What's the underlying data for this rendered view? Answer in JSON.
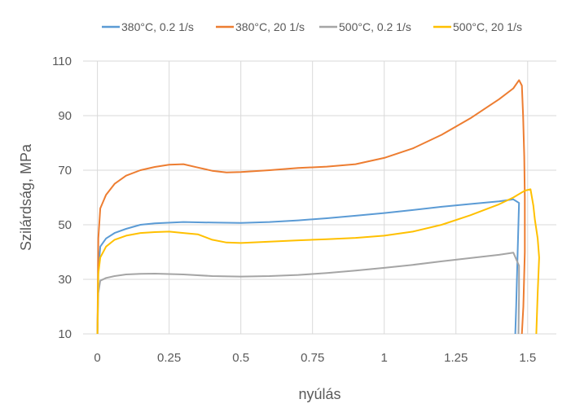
{
  "chart_data": {
    "type": "line",
    "title": "",
    "xlabel": "nyúlás",
    "ylabel": "Szilárdság, MPa",
    "xlim": [
      -0.05,
      1.6
    ],
    "ylim": [
      10,
      110
    ],
    "x_ticks": [
      0,
      0.25,
      0.5,
      0.75,
      1,
      1.25,
      1.5
    ],
    "x_tick_labels": [
      "0",
      "0.25",
      "0.5",
      "0.75",
      "1",
      "1.25",
      "1.5"
    ],
    "y_ticks": [
      10,
      30,
      50,
      70,
      90,
      110
    ],
    "y_tick_labels": [
      "10",
      "30",
      "50",
      "70",
      "90",
      "110"
    ],
    "grid": true,
    "legend_position": "top",
    "series": [
      {
        "name": "380°C, 0.2 1/s",
        "color": "#5B9BD5",
        "points": [
          [
            0,
            10
          ],
          [
            0.003,
            33
          ],
          [
            0.01,
            42
          ],
          [
            0.03,
            45
          ],
          [
            0.06,
            47
          ],
          [
            0.1,
            48.5
          ],
          [
            0.15,
            50
          ],
          [
            0.2,
            50.5
          ],
          [
            0.3,
            51
          ],
          [
            0.4,
            50.8
          ],
          [
            0.5,
            50.7
          ],
          [
            0.6,
            51
          ],
          [
            0.7,
            51.6
          ],
          [
            0.8,
            52.4
          ],
          [
            0.9,
            53.3
          ],
          [
            1.0,
            54.3
          ],
          [
            1.1,
            55.4
          ],
          [
            1.2,
            56.6
          ],
          [
            1.3,
            57.6
          ],
          [
            1.4,
            58.6
          ],
          [
            1.45,
            59.3
          ],
          [
            1.47,
            58
          ],
          [
            1.465,
            40
          ],
          [
            1.46,
            20
          ],
          [
            1.457,
            10
          ]
        ]
      },
      {
        "name": "380°C, 20 1/s",
        "color": "#ED7D31",
        "points": [
          [
            0,
            10
          ],
          [
            0.003,
            45
          ],
          [
            0.01,
            56
          ],
          [
            0.03,
            61
          ],
          [
            0.06,
            65
          ],
          [
            0.1,
            68
          ],
          [
            0.15,
            70
          ],
          [
            0.2,
            71.2
          ],
          [
            0.25,
            72
          ],
          [
            0.3,
            72.2
          ],
          [
            0.35,
            71
          ],
          [
            0.4,
            69.8
          ],
          [
            0.45,
            69.2
          ],
          [
            0.5,
            69.3
          ],
          [
            0.6,
            70
          ],
          [
            0.7,
            70.8
          ],
          [
            0.8,
            71.3
          ],
          [
            0.9,
            72.2
          ],
          [
            1.0,
            74.5
          ],
          [
            1.1,
            78
          ],
          [
            1.2,
            83
          ],
          [
            1.3,
            89
          ],
          [
            1.4,
            96
          ],
          [
            1.45,
            100
          ],
          [
            1.47,
            103
          ],
          [
            1.48,
            101
          ],
          [
            1.484,
            90
          ],
          [
            1.488,
            75
          ],
          [
            1.49,
            60
          ],
          [
            1.49,
            40
          ],
          [
            1.485,
            20
          ],
          [
            1.48,
            10
          ]
        ]
      },
      {
        "name": "500°C, 0.2 1/s",
        "color": "#A5A5A5",
        "points": [
          [
            0,
            10
          ],
          [
            0.003,
            25
          ],
          [
            0.01,
            29.5
          ],
          [
            0.03,
            30.5
          ],
          [
            0.06,
            31.2
          ],
          [
            0.1,
            31.8
          ],
          [
            0.15,
            32
          ],
          [
            0.2,
            32.1
          ],
          [
            0.3,
            31.8
          ],
          [
            0.4,
            31.2
          ],
          [
            0.5,
            31
          ],
          [
            0.6,
            31.2
          ],
          [
            0.7,
            31.6
          ],
          [
            0.8,
            32.3
          ],
          [
            0.9,
            33.2
          ],
          [
            1.0,
            34.2
          ],
          [
            1.1,
            35.3
          ],
          [
            1.2,
            36.6
          ],
          [
            1.3,
            37.8
          ],
          [
            1.4,
            39
          ],
          [
            1.45,
            39.8
          ],
          [
            1.47,
            35
          ],
          [
            1.47,
            25
          ],
          [
            1.468,
            10
          ]
        ]
      },
      {
        "name": "500°C, 20 1/s",
        "color": "#FFC000",
        "points": [
          [
            0,
            10
          ],
          [
            0.003,
            32
          ],
          [
            0.01,
            38
          ],
          [
            0.03,
            42
          ],
          [
            0.06,
            44.5
          ],
          [
            0.1,
            46
          ],
          [
            0.15,
            47
          ],
          [
            0.2,
            47.3
          ],
          [
            0.25,
            47.5
          ],
          [
            0.3,
            47
          ],
          [
            0.35,
            46.5
          ],
          [
            0.4,
            44.5
          ],
          [
            0.45,
            43.5
          ],
          [
            0.5,
            43.3
          ],
          [
            0.6,
            43.8
          ],
          [
            0.7,
            44.3
          ],
          [
            0.8,
            44.7
          ],
          [
            0.9,
            45.2
          ],
          [
            1.0,
            46
          ],
          [
            1.1,
            47.5
          ],
          [
            1.2,
            50
          ],
          [
            1.3,
            53.5
          ],
          [
            1.4,
            57.5
          ],
          [
            1.45,
            60
          ],
          [
            1.49,
            62.5
          ],
          [
            1.51,
            63
          ],
          [
            1.52,
            57
          ],
          [
            1.525,
            52
          ],
          [
            1.535,
            45
          ],
          [
            1.54,
            38
          ],
          [
            1.535,
            25
          ],
          [
            1.53,
            10
          ]
        ]
      }
    ]
  }
}
